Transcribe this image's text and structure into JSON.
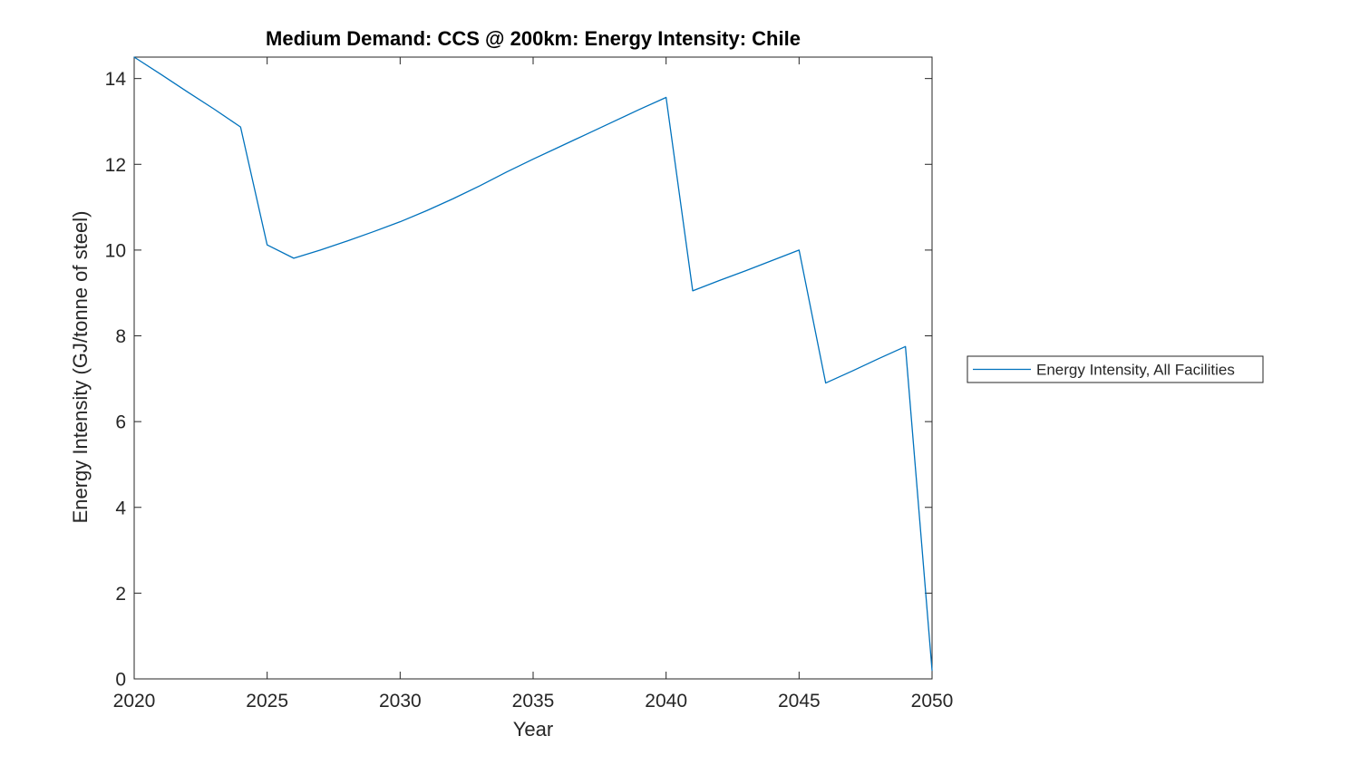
{
  "chart_data": {
    "type": "line",
    "title": "Medium Demand: CCS @ 200km: Energy Intensity: Chile",
    "xlabel": "Year",
    "ylabel": "Energy Intensity (GJ/tonne of steel)",
    "xlim": [
      2020,
      2050
    ],
    "ylim": [
      0,
      14.5
    ],
    "xticks": [
      2020,
      2025,
      2030,
      2035,
      2040,
      2045,
      2050
    ],
    "yticks": [
      0,
      2,
      4,
      6,
      8,
      10,
      12,
      14
    ],
    "grid": false,
    "legend_position": "right-outside-middle",
    "axis_color": "#262626",
    "background_color": "#ffffff",
    "x": [
      2020,
      2021,
      2022,
      2023,
      2024,
      2025,
      2026,
      2027,
      2028,
      2029,
      2030,
      2031,
      2032,
      2033,
      2034,
      2035,
      2036,
      2037,
      2038,
      2039,
      2040,
      2041,
      2042,
      2043,
      2044,
      2045,
      2046,
      2047,
      2048,
      2049,
      2050
    ],
    "series": [
      {
        "name": "Energy Intensity, All Facilities",
        "color": "#0072BD",
        "values": [
          14.5,
          14.1,
          13.69,
          13.29,
          12.87,
          10.12,
          9.81,
          10.0,
          10.21,
          10.43,
          10.66,
          10.92,
          11.2,
          11.5,
          11.82,
          12.12,
          12.41,
          12.7,
          12.99,
          13.28,
          13.56,
          9.05,
          9.29,
          9.52,
          9.76,
          10.0,
          6.9,
          7.18,
          7.47,
          7.75,
          0.2
        ]
      }
    ]
  }
}
